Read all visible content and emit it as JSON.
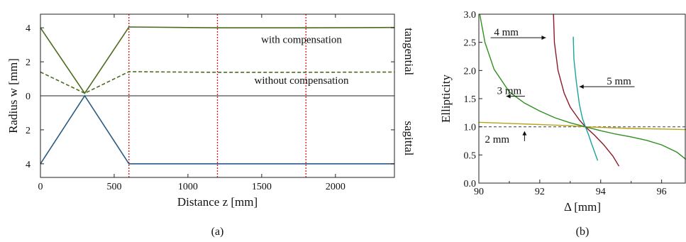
{
  "colors": {
    "tangential": "#4d6b1e",
    "sagittal": "#2a5a82",
    "marker": "#d01818",
    "c3mm": "#2f8f1f",
    "c4mm": "#8c1a24",
    "c5mm": "#1aa39a",
    "c2mm": "#b8a51a",
    "ref": "#555555"
  },
  "chart_data": [
    {
      "type": "line",
      "panel_label": "(a)",
      "xlabel": "Distance z [mm]",
      "ylabel": "Radius w [mm]",
      "xlim": [
        0,
        2400
      ],
      "ylim": [
        -4.8,
        4.8
      ],
      "x_ticks": [
        0,
        500,
        1000,
        1500,
        2000
      ],
      "y_ticks": [
        {
          "value": 4,
          "label": "4"
        },
        {
          "value": 2,
          "label": "2"
        },
        {
          "value": 0,
          "label": "0"
        },
        {
          "value": -2,
          "label": "2"
        },
        {
          "value": -4,
          "label": "4"
        }
      ],
      "right_labels": {
        "upper": "tangential",
        "lower": "sagittal"
      },
      "markers_x": [
        600,
        1200,
        1800
      ],
      "annotations": [
        {
          "text": "with compensation",
          "x": 1770,
          "y": 3.1
        },
        {
          "text": "without compensation",
          "x": 1770,
          "y": 0.7
        }
      ],
      "series": [
        {
          "role": "tangential-with",
          "style": "solid",
          "points": [
            [
              0,
              4.0
            ],
            [
              300,
              0.15
            ],
            [
              600,
              4.05
            ],
            [
              1200,
              4.0
            ],
            [
              1800,
              4.0
            ],
            [
              2400,
              4.02
            ]
          ]
        },
        {
          "role": "tangential-without",
          "style": "dashed",
          "points": [
            [
              0,
              1.4
            ],
            [
              300,
              0.15
            ],
            [
              600,
              1.42
            ],
            [
              1200,
              1.38
            ],
            [
              1800,
              1.38
            ],
            [
              2400,
              1.4
            ]
          ]
        },
        {
          "role": "axis-zero",
          "style": "thin",
          "points": [
            [
              0,
              0.0
            ],
            [
              2400,
              0.0
            ]
          ]
        },
        {
          "role": "sagittal",
          "style": "solid",
          "points": [
            [
              0,
              -4.0
            ],
            [
              300,
              0.0
            ],
            [
              600,
              -4.0
            ],
            [
              1200,
              -4.0
            ],
            [
              1800,
              -4.0
            ],
            [
              2400,
              -4.0
            ]
          ]
        }
      ]
    },
    {
      "type": "line",
      "panel_label": "(b)",
      "xlabel": "Δ [mm]",
      "ylabel": "Ellipticity",
      "xlim": [
        90,
        96.8
      ],
      "ylim": [
        0,
        3
      ],
      "x_ticks": [
        90,
        92,
        94,
        96
      ],
      "y_ticks": [
        0.0,
        0.5,
        1.0,
        1.5,
        2.0,
        2.5,
        3.0
      ],
      "y_tick_labels": [
        "0.0",
        "0.5",
        "1.0",
        "1.5",
        "2.0",
        "2.5",
        "3.0"
      ],
      "reference_y": 1.0,
      "annotations": [
        {
          "text": "4 mm",
          "x": 90.9,
          "y": 2.62,
          "arrow_to": [
            92.2,
            2.62
          ]
        },
        {
          "text": "5 mm",
          "x": 94.6,
          "y": 1.75,
          "arrow_to": [
            93.3,
            1.75
          ]
        },
        {
          "text": "3 mm",
          "x": 91.0,
          "y": 1.58,
          "arrow_to": [
            90.9,
            1.58
          ]
        },
        {
          "text": "2 mm",
          "x": 90.6,
          "y": 0.72,
          "arrow_to": [
            91.5,
            0.95
          ]
        }
      ],
      "series": [
        {
          "name": "2 mm",
          "color_key": "c2mm",
          "points": [
            [
              90,
              1.08
            ],
            [
              91,
              1.06
            ],
            [
              92,
              1.04
            ],
            [
              93,
              1.02
            ],
            [
              93.5,
              1.0
            ],
            [
              94,
              0.99
            ],
            [
              95,
              0.97
            ],
            [
              96,
              0.96
            ],
            [
              96.8,
              0.95
            ]
          ]
        },
        {
          "name": "3 mm",
          "color_key": "c3mm",
          "points": [
            [
              90.03,
              3.0
            ],
            [
              90.2,
              2.5
            ],
            [
              90.5,
              2.02
            ],
            [
              91,
              1.62
            ],
            [
              91.5,
              1.42
            ],
            [
              92,
              1.28
            ],
            [
              92.5,
              1.16
            ],
            [
              93,
              1.07
            ],
            [
              93.5,
              1.0
            ],
            [
              94,
              0.93
            ],
            [
              94.5,
              0.87
            ],
            [
              95,
              0.82
            ],
            [
              95.5,
              0.76
            ],
            [
              96,
              0.68
            ],
            [
              96.5,
              0.55
            ],
            [
              96.8,
              0.42
            ]
          ]
        },
        {
          "name": "4 mm",
          "color_key": "c4mm",
          "points": [
            [
              92.45,
              3.0
            ],
            [
              92.48,
              2.5
            ],
            [
              92.6,
              2.0
            ],
            [
              92.8,
              1.6
            ],
            [
              93.0,
              1.35
            ],
            [
              93.3,
              1.12
            ],
            [
              93.5,
              1.0
            ],
            [
              93.8,
              0.85
            ],
            [
              94.1,
              0.68
            ],
            [
              94.4,
              0.48
            ],
            [
              94.6,
              0.3
            ]
          ]
        },
        {
          "name": "5 mm",
          "color_key": "c5mm",
          "points": [
            [
              93.1,
              2.6
            ],
            [
              93.12,
              2.2
            ],
            [
              93.2,
              1.8
            ],
            [
              93.3,
              1.4
            ],
            [
              93.4,
              1.15
            ],
            [
              93.5,
              1.0
            ],
            [
              93.6,
              0.86
            ],
            [
              93.7,
              0.7
            ],
            [
              93.8,
              0.55
            ],
            [
              93.9,
              0.4
            ]
          ]
        }
      ]
    }
  ]
}
